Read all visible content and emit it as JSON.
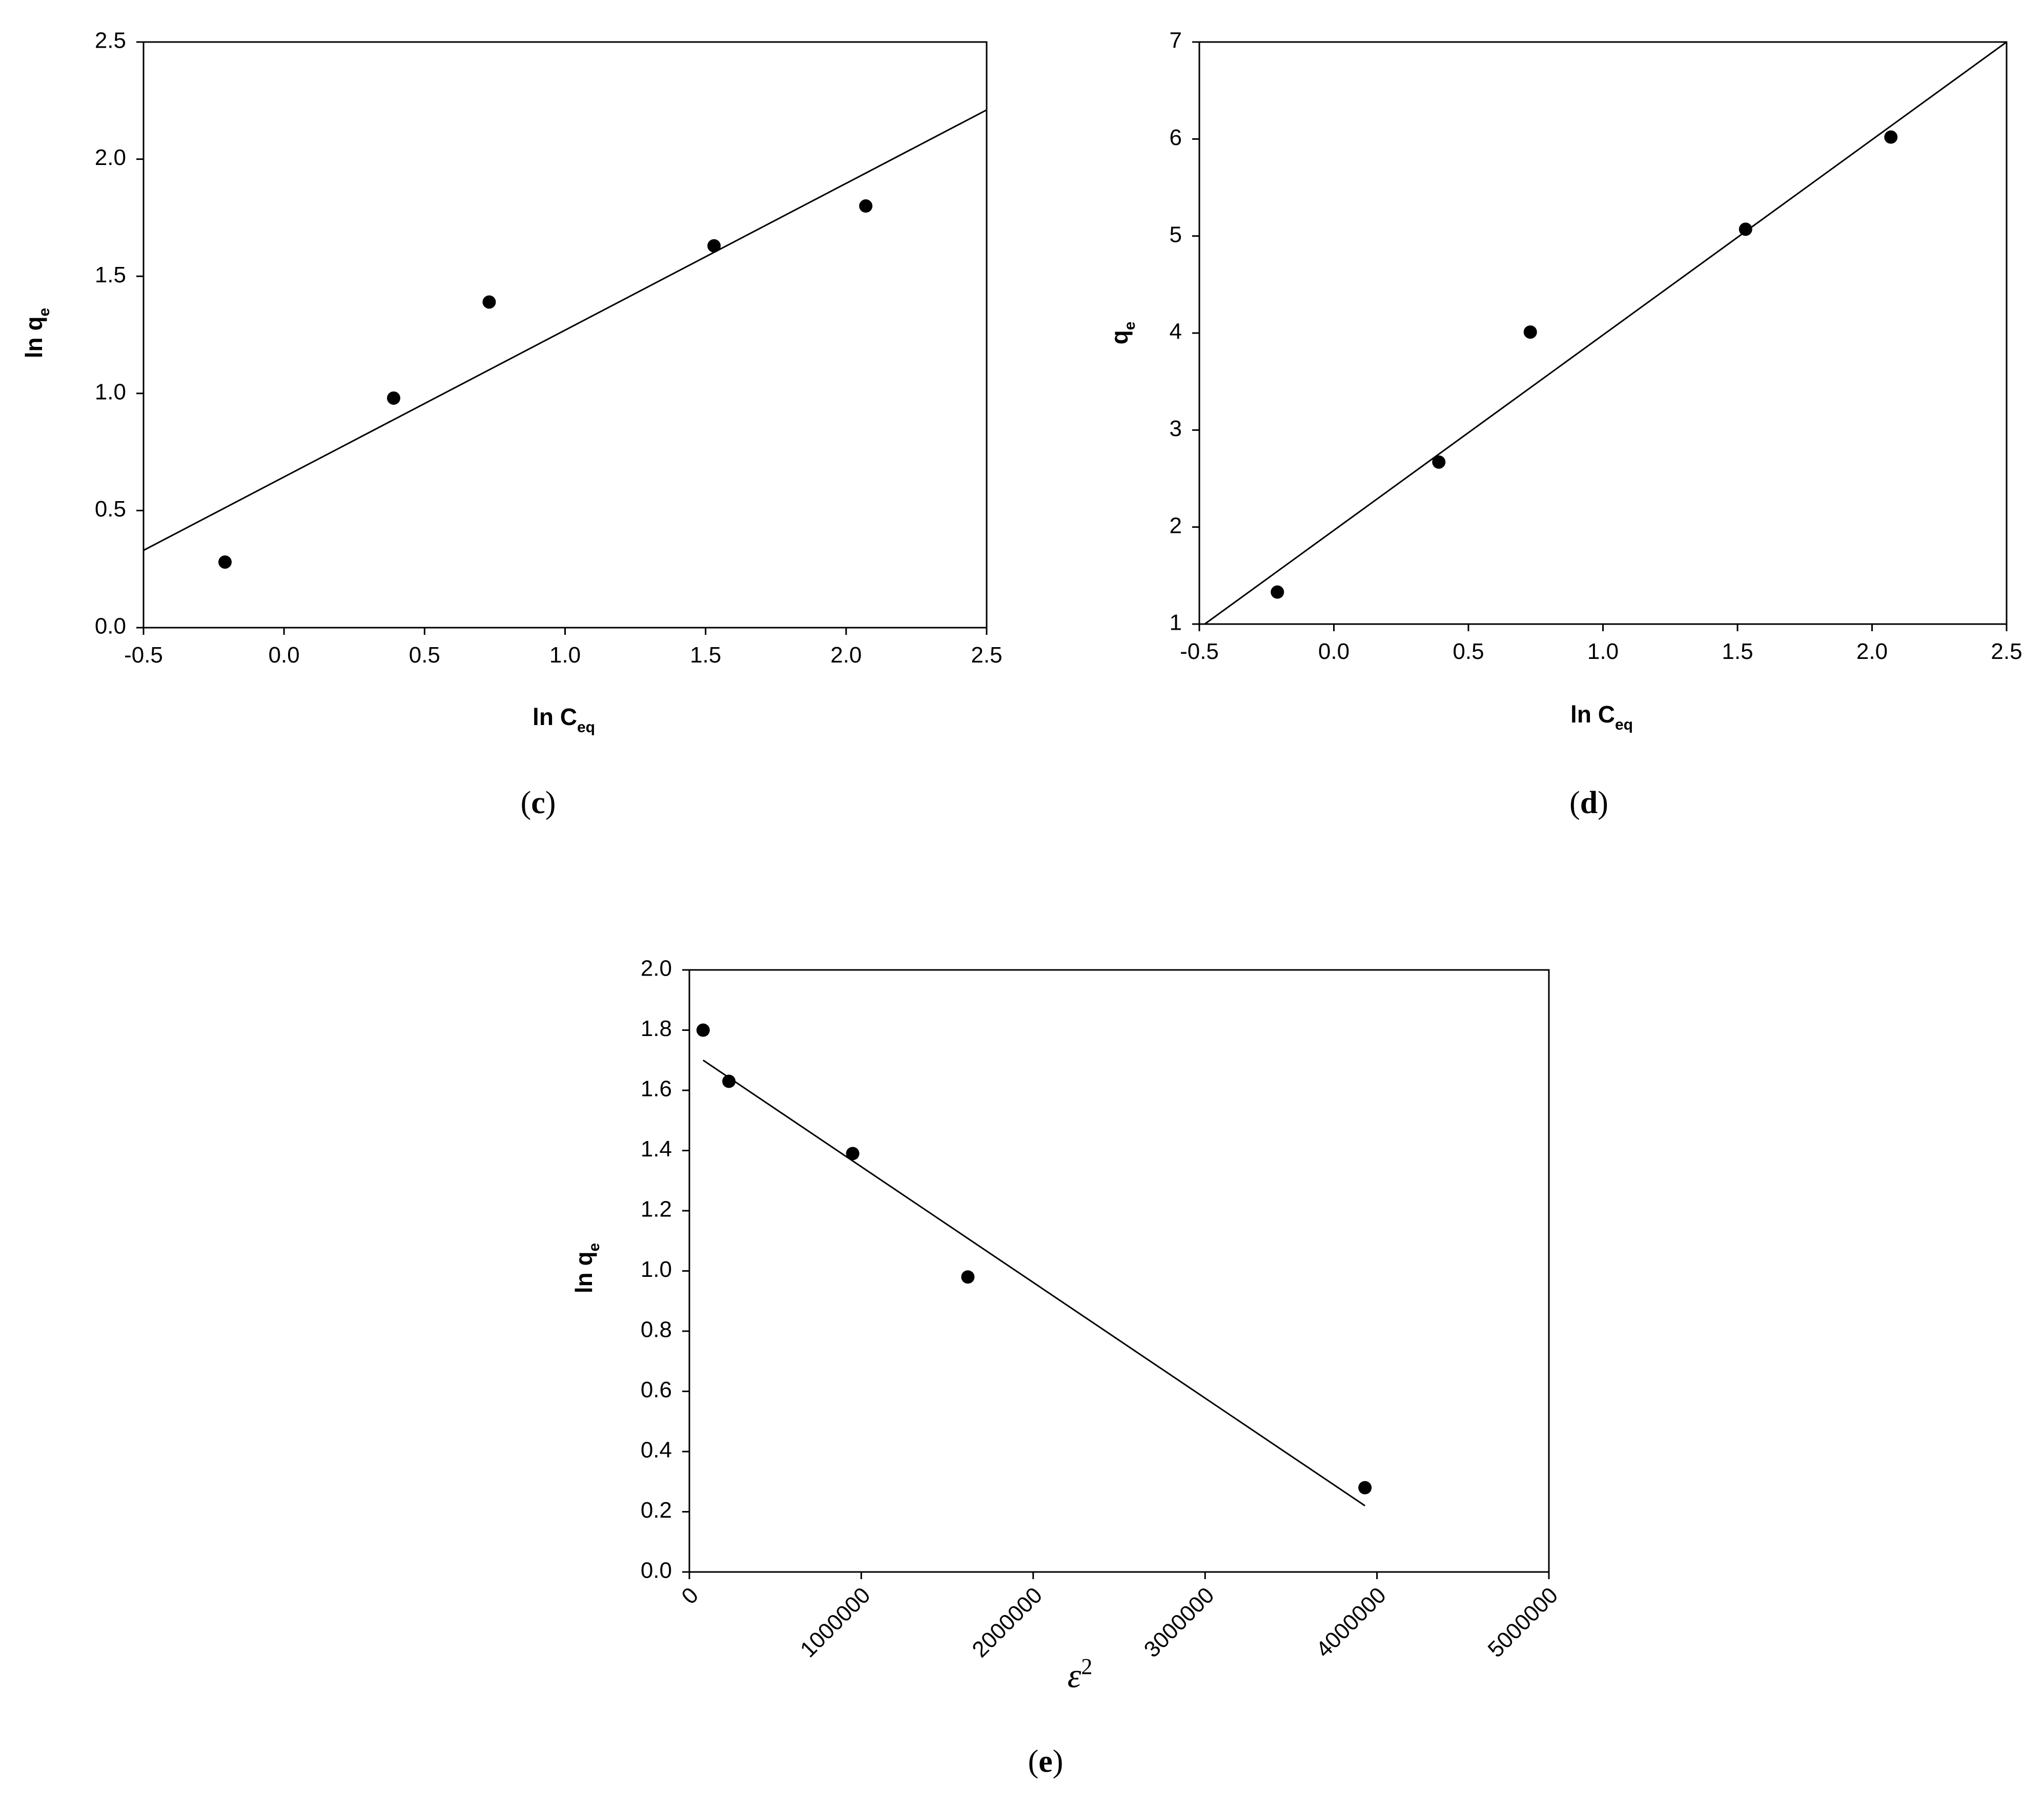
{
  "chart_data": [
    {
      "id": "c",
      "type": "scatter",
      "title": "",
      "xlabel": "ln C",
      "xlabel_sub": "eq",
      "ylabel": "ln q",
      "ylabel_sub": "e",
      "xlim": [
        -0.5,
        2.5
      ],
      "ylim": [
        0.0,
        2.5
      ],
      "xticks": [
        "-0.5",
        "0.0",
        "0.5",
        "1.0",
        "1.5",
        "2.0",
        "2.5"
      ],
      "yticks": [
        "0.0",
        "0.5",
        "1.0",
        "1.5",
        "2.0",
        "2.5"
      ],
      "points": [
        {
          "x": -0.21,
          "y": 0.28
        },
        {
          "x": 0.39,
          "y": 0.98
        },
        {
          "x": 0.73,
          "y": 1.39
        },
        {
          "x": 1.53,
          "y": 1.63
        },
        {
          "x": 2.07,
          "y": 1.8
        }
      ],
      "fit_line": [
        {
          "x": -0.5,
          "y": 0.33
        },
        {
          "x": 2.5,
          "y": 2.21
        }
      ],
      "caption_letter": "c"
    },
    {
      "id": "d",
      "type": "scatter",
      "title": "",
      "xlabel": "ln C",
      "xlabel_sub": "eq",
      "ylabel": "q",
      "ylabel_sub": "e",
      "xlim": [
        -0.5,
        2.5
      ],
      "ylim": [
        1,
        7
      ],
      "xticks": [
        "-0.5",
        "0.0",
        "0.5",
        "1.0",
        "1.5",
        "2.0",
        "2.5"
      ],
      "yticks": [
        "1",
        "2",
        "3",
        "4",
        "5",
        "6",
        "7"
      ],
      "points": [
        {
          "x": -0.21,
          "y": 1.33
        },
        {
          "x": 0.39,
          "y": 2.67
        },
        {
          "x": 0.73,
          "y": 4.01
        },
        {
          "x": 1.53,
          "y": 5.07
        },
        {
          "x": 2.07,
          "y": 6.02
        }
      ],
      "fit_line": [
        {
          "x": -0.48,
          "y": 1.0
        },
        {
          "x": 2.5,
          "y": 7.0
        }
      ],
      "caption_letter": "d"
    },
    {
      "id": "e",
      "type": "scatter",
      "title": "",
      "xlabel": "ε",
      "xlabel_sup": "2",
      "ylabel": "ln q",
      "ylabel_sub": "e",
      "xlim": [
        0,
        5000000
      ],
      "ylim": [
        0.0,
        2.0
      ],
      "xticks": [
        "0",
        "1000000",
        "2000000",
        "3000000",
        "4000000",
        "5000000"
      ],
      "yticks": [
        "0.0",
        "0.2",
        "0.4",
        "0.6",
        "0.8",
        "1.0",
        "1.2",
        "1.4",
        "1.6",
        "1.8",
        "2.0"
      ],
      "points": [
        {
          "x": 80000,
          "y": 1.8
        },
        {
          "x": 230000,
          "y": 1.63
        },
        {
          "x": 950000,
          "y": 1.39
        },
        {
          "x": 1620000,
          "y": 0.98
        },
        {
          "x": 3930000,
          "y": 0.28
        }
      ],
      "fit_line": [
        {
          "x": 80000,
          "y": 1.7
        },
        {
          "x": 3930000,
          "y": 0.22
        }
      ],
      "caption_letter": "e"
    }
  ]
}
